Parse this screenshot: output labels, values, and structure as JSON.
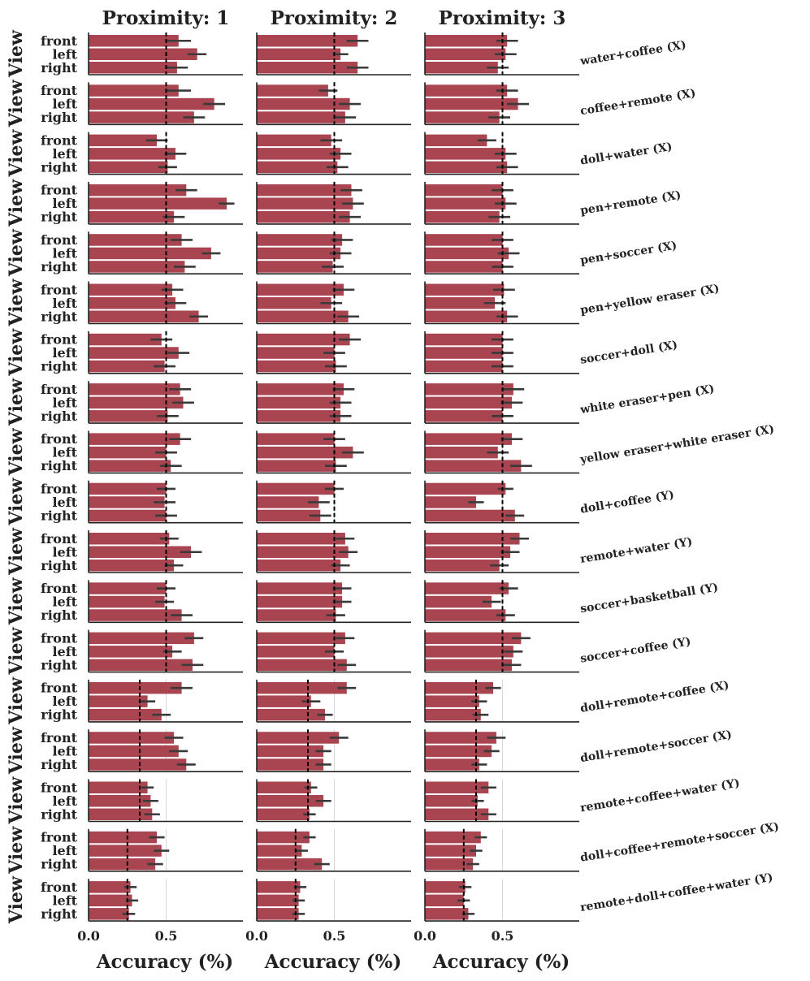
{
  "colors": {
    "bar": "#a94550",
    "error": "#3a3a3a",
    "chance": "#000000",
    "axis": "#222222",
    "grid": "#d8d8d8"
  },
  "chart_data": {
    "type": "bar",
    "orientation": "horizontal",
    "facet_columns": [
      "Proximity: 1",
      "Proximity: 2",
      "Proximity: 3"
    ],
    "views": [
      "front",
      "left",
      "right"
    ],
    "y_axis_word": "View",
    "xlabel": "Accuracy (%)",
    "xlim": [
      0,
      1
    ],
    "xticks": [
      0.0,
      0.5
    ],
    "xtick_labels": [
      "0.0",
      "0.5"
    ],
    "rows": [
      {
        "label": "water+coffee (X)",
        "chance": 0.5,
        "values": [
          [
            0.58,
            0.7,
            0.57
          ],
          [
            0.65,
            0.54,
            0.65
          ],
          [
            0.53,
            0.52,
            0.47
          ]
        ],
        "errors": [
          [
            0.08,
            0.06,
            0.07
          ],
          [
            0.07,
            0.05,
            0.07
          ],
          [
            0.07,
            0.07,
            0.07
          ]
        ]
      },
      {
        "label": "coffee+remote (X)",
        "chance": 0.5,
        "values": [
          [
            0.58,
            0.81,
            0.68
          ],
          [
            0.46,
            0.6,
            0.57
          ],
          [
            0.53,
            0.6,
            0.48
          ]
        ],
        "errors": [
          [
            0.08,
            0.07,
            0.07
          ],
          [
            0.06,
            0.07,
            0.07
          ],
          [
            0.07,
            0.07,
            0.07
          ]
        ]
      },
      {
        "label": "doll+water (X)",
        "chance": 0.5,
        "values": [
          [
            0.44,
            0.56,
            0.51
          ],
          [
            0.48,
            0.54,
            0.52
          ],
          [
            0.4,
            0.52,
            0.53
          ]
        ],
        "errors": [
          [
            0.07,
            0.07,
            0.06
          ],
          [
            0.07,
            0.07,
            0.07
          ],
          [
            0.06,
            0.07,
            0.07
          ]
        ]
      },
      {
        "label": "pen+remote (X)",
        "chance": 0.5,
        "values": [
          [
            0.63,
            0.89,
            0.55
          ],
          [
            0.61,
            0.62,
            0.6
          ],
          [
            0.5,
            0.52,
            0.48
          ]
        ],
        "errors": [
          [
            0.07,
            0.05,
            0.07
          ],
          [
            0.07,
            0.07,
            0.07
          ],
          [
            0.07,
            0.07,
            0.07
          ]
        ]
      },
      {
        "label": "pen+soccer (X)",
        "chance": 0.5,
        "values": [
          [
            0.6,
            0.79,
            0.62
          ],
          [
            0.55,
            0.54,
            0.49
          ],
          [
            0.5,
            0.54,
            0.5
          ]
        ],
        "errors": [
          [
            0.07,
            0.06,
            0.07
          ],
          [
            0.07,
            0.07,
            0.07
          ],
          [
            0.07,
            0.07,
            0.07
          ]
        ]
      },
      {
        "label": "pen+yellow eraser (X)",
        "chance": 0.5,
        "values": [
          [
            0.54,
            0.56,
            0.71
          ],
          [
            0.56,
            0.48,
            0.59
          ],
          [
            0.51,
            0.45,
            0.53
          ]
        ],
        "errors": [
          [
            0.07,
            0.07,
            0.06
          ],
          [
            0.07,
            0.07,
            0.07
          ],
          [
            0.07,
            0.07,
            0.07
          ]
        ]
      },
      {
        "label": "soccer+doll (X)",
        "chance": 0.5,
        "values": [
          [
            0.47,
            0.58,
            0.49
          ],
          [
            0.6,
            0.5,
            0.51
          ],
          [
            0.5,
            0.5,
            0.5
          ]
        ],
        "errors": [
          [
            0.07,
            0.07,
            0.07
          ],
          [
            0.07,
            0.07,
            0.07
          ],
          [
            0.07,
            0.07,
            0.07
          ]
        ]
      },
      {
        "label": "white eraser+pen (X)",
        "chance": 0.5,
        "values": [
          [
            0.59,
            0.61,
            0.51
          ],
          [
            0.56,
            0.54,
            0.54
          ],
          [
            0.57,
            0.56,
            0.5
          ]
        ],
        "errors": [
          [
            0.07,
            0.07,
            0.07
          ],
          [
            0.07,
            0.07,
            0.07
          ],
          [
            0.07,
            0.07,
            0.07
          ]
        ]
      },
      {
        "label": "yellow eraser+white eraser (X)",
        "chance": 0.5,
        "values": [
          [
            0.59,
            0.5,
            0.53
          ],
          [
            0.5,
            0.62,
            0.51
          ],
          [
            0.56,
            0.47,
            0.62
          ]
        ],
        "errors": [
          [
            0.07,
            0.07,
            0.07
          ],
          [
            0.07,
            0.07,
            0.07
          ],
          [
            0.07,
            0.07,
            0.07
          ]
        ]
      },
      {
        "label": "doll+coffee (Y)",
        "chance": 0.5,
        "values": [
          [
            0.5,
            0.49,
            0.5
          ],
          [
            0.5,
            0.4,
            0.41
          ],
          [
            0.52,
            0.33,
            0.58
          ]
        ],
        "errors": [
          [
            0.06,
            0.07,
            0.07
          ],
          [
            0.06,
            0.07,
            0.07
          ],
          [
            0.05,
            0.05,
            0.06
          ]
        ]
      },
      {
        "label": "remote+water (Y)",
        "chance": 0.5,
        "values": [
          [
            0.52,
            0.66,
            0.55
          ],
          [
            0.57,
            0.59,
            0.54
          ],
          [
            0.61,
            0.55,
            0.48
          ]
        ],
        "errors": [
          [
            0.06,
            0.07,
            0.06
          ],
          [
            0.06,
            0.06,
            0.06
          ],
          [
            0.06,
            0.06,
            0.06
          ]
        ]
      },
      {
        "label": "soccer+basketball (Y)",
        "chance": 0.5,
        "values": [
          [
            0.5,
            0.49,
            0.6
          ],
          [
            0.55,
            0.55,
            0.51
          ],
          [
            0.54,
            0.43,
            0.52
          ]
        ],
        "errors": [
          [
            0.06,
            0.06,
            0.07
          ],
          [
            0.06,
            0.06,
            0.06
          ],
          [
            0.06,
            0.06,
            0.06
          ]
        ]
      },
      {
        "label": "soccer+coffee (Y)",
        "chance": 0.5,
        "values": [
          [
            0.68,
            0.54,
            0.67
          ],
          [
            0.57,
            0.5,
            0.58
          ],
          [
            0.62,
            0.57,
            0.56
          ]
        ],
        "errors": [
          [
            0.06,
            0.06,
            0.07
          ],
          [
            0.06,
            0.06,
            0.06
          ],
          [
            0.06,
            0.06,
            0.06
          ]
        ]
      },
      {
        "label": "doll+remote+coffee (X)",
        "chance": 0.33,
        "values": [
          [
            0.6,
            0.38,
            0.47
          ],
          [
            0.58,
            0.35,
            0.44
          ],
          [
            0.44,
            0.35,
            0.36
          ]
        ],
        "errors": [
          [
            0.07,
            0.05,
            0.06
          ],
          [
            0.06,
            0.06,
            0.05
          ],
          [
            0.05,
            0.05,
            0.05
          ]
        ]
      },
      {
        "label": "doll+remote+soccer (X)",
        "chance": 0.33,
        "values": [
          [
            0.55,
            0.58,
            0.63
          ],
          [
            0.53,
            0.43,
            0.43
          ],
          [
            0.46,
            0.43,
            0.35
          ]
        ],
        "errors": [
          [
            0.06,
            0.06,
            0.06
          ],
          [
            0.06,
            0.05,
            0.05
          ],
          [
            0.06,
            0.05,
            0.05
          ]
        ]
      },
      {
        "label": "remote+coffee+water (Y)",
        "chance": 0.33,
        "values": [
          [
            0.38,
            0.4,
            0.41
          ],
          [
            0.35,
            0.43,
            0.34
          ],
          [
            0.41,
            0.34,
            0.41
          ]
        ],
        "errors": [
          [
            0.04,
            0.05,
            0.05
          ],
          [
            0.04,
            0.05,
            0.04
          ],
          [
            0.05,
            0.04,
            0.05
          ]
        ]
      },
      {
        "label": "doll+coffee+remote+soccer (X)",
        "chance": 0.25,
        "values": [
          [
            0.44,
            0.47,
            0.43
          ],
          [
            0.34,
            0.29,
            0.42
          ],
          [
            0.36,
            0.33,
            0.31
          ]
        ],
        "errors": [
          [
            0.05,
            0.05,
            0.05
          ],
          [
            0.04,
            0.04,
            0.05
          ],
          [
            0.04,
            0.04,
            0.04
          ]
        ]
      },
      {
        "label": "remote+doll+coffee+water (Y)",
        "chance": 0.25,
        "values": [
          [
            0.27,
            0.28,
            0.26
          ],
          [
            0.28,
            0.27,
            0.27
          ],
          [
            0.26,
            0.25,
            0.28
          ]
        ],
        "errors": [
          [
            0.04,
            0.04,
            0.04
          ],
          [
            0.04,
            0.04,
            0.04
          ],
          [
            0.04,
            0.04,
            0.04
          ]
        ]
      }
    ]
  }
}
